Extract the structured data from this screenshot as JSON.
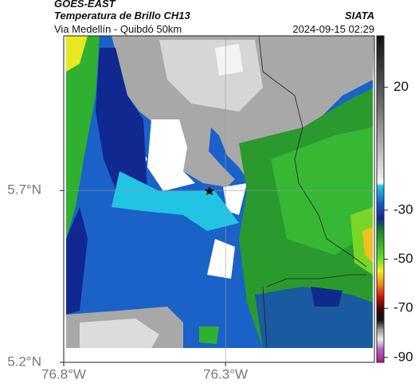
{
  "header": {
    "source": "GOES-EAST",
    "title": "Temperatura de Brillo CH13",
    "org": "SIATA",
    "subtitle": "Via Medellín - Quibdó 50km",
    "timestamp": "2024-09-15 02:29"
  },
  "map": {
    "lonlim": [
      -76.8,
      -75.84
    ],
    "latlim": [
      5.2,
      6.15
    ],
    "xticks": [
      {
        "value": -76.8,
        "label": "76.8°W"
      },
      {
        "value": -76.3,
        "label": "76.3°W"
      }
    ],
    "yticks": [
      {
        "value": 5.2,
        "label": "5.2°N"
      },
      {
        "value": 5.7,
        "label": "5.7°N"
      }
    ]
  },
  "colorbar": {
    "lim": [
      -92,
      41
    ],
    "ticks": [
      20,
      -30,
      -50,
      -70,
      -90
    ]
  }
}
